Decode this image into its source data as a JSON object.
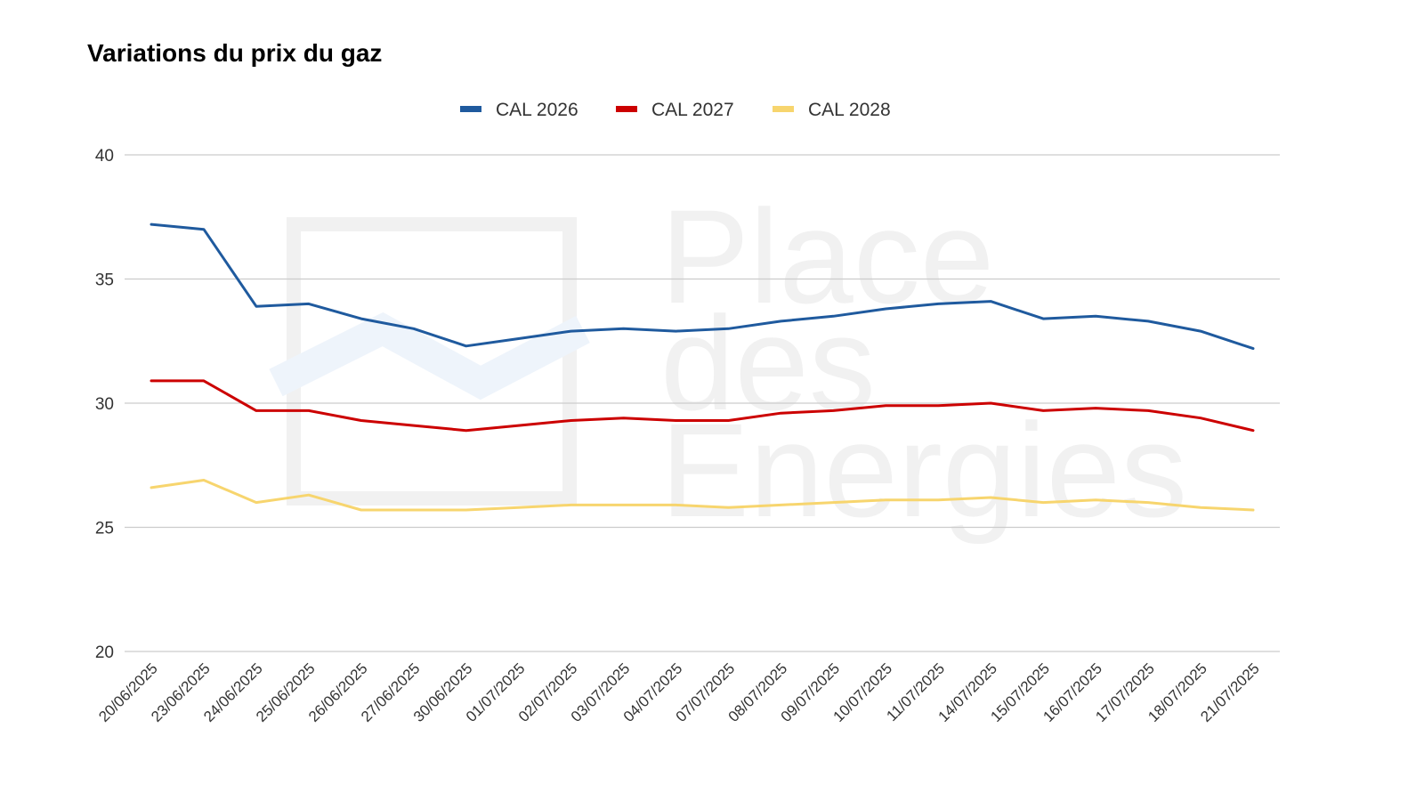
{
  "chart_data": {
    "type": "line",
    "title": "Variations du prix du gaz",
    "xlabel": "",
    "ylabel": "",
    "ylim": [
      20,
      40
    ],
    "yticks": [
      20,
      25,
      30,
      35,
      40
    ],
    "grid": true,
    "legend_position": "top-center",
    "categories": [
      "20/06/2025",
      "23/06/2025",
      "24/06/2025",
      "25/06/2025",
      "26/06/2025",
      "27/06/2025",
      "30/06/2025",
      "01/07/2025",
      "02/07/2025",
      "03/07/2025",
      "04/07/2025",
      "07/07/2025",
      "08/07/2025",
      "09/07/2025",
      "10/07/2025",
      "11/07/2025",
      "14/07/2025",
      "15/07/2025",
      "16/07/2025",
      "17/07/2025",
      "18/07/2025",
      "21/07/2025"
    ],
    "series": [
      {
        "name": "CAL 2026",
        "color": "#1f5a9e",
        "values": [
          37.2,
          37.0,
          33.9,
          34.0,
          33.4,
          33.0,
          32.3,
          32.6,
          32.9,
          33.0,
          32.9,
          33.0,
          33.3,
          33.5,
          33.8,
          34.0,
          34.1,
          33.4,
          33.5,
          33.3,
          32.9,
          32.2
        ]
      },
      {
        "name": "CAL 2027",
        "color": "#cc0000",
        "values": [
          30.9,
          30.9,
          29.7,
          29.7,
          29.3,
          29.1,
          28.9,
          29.1,
          29.3,
          29.4,
          29.3,
          29.3,
          29.6,
          29.7,
          29.9,
          29.9,
          30.0,
          29.7,
          29.8,
          29.7,
          29.4,
          28.9
        ]
      },
      {
        "name": "CAL 2028",
        "color": "#f7d56e",
        "values": [
          26.6,
          26.9,
          26.0,
          26.3,
          25.7,
          25.7,
          25.7,
          25.8,
          25.9,
          25.9,
          25.9,
          25.8,
          25.9,
          26.0,
          26.1,
          26.1,
          26.2,
          26.0,
          26.1,
          26.0,
          25.8,
          25.7
        ]
      }
    ]
  },
  "watermark": {
    "lines": [
      "Place",
      "des",
      "Energies"
    ],
    "color": "#f1f1f1"
  }
}
